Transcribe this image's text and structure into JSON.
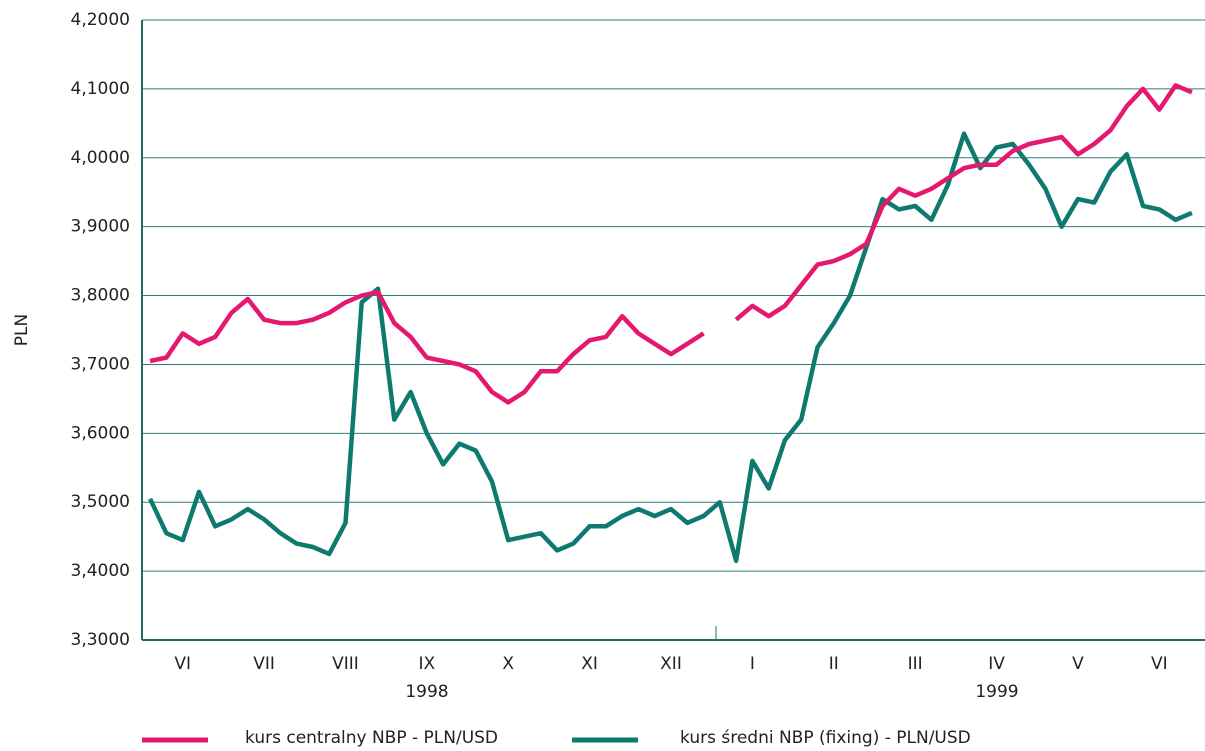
{
  "chart_data": {
    "type": "line",
    "y_label": "PLN",
    "categories": [
      null,
      null,
      "VI",
      null,
      null,
      null,
      null,
      "VII",
      null,
      null,
      null,
      null,
      "VIII",
      null,
      null,
      null,
      null,
      "IX",
      null,
      null,
      null,
      null,
      "X",
      null,
      null,
      null,
      null,
      "XI",
      null,
      null,
      null,
      null,
      "XII",
      null,
      null,
      null,
      null,
      "I",
      null,
      null,
      null,
      null,
      "II",
      null,
      null,
      null,
      null,
      "III",
      null,
      null,
      null,
      null,
      "IV",
      null,
      null,
      null,
      null,
      "V",
      null,
      null,
      null,
      null,
      "VI",
      null,
      null
    ],
    "year_labels": [
      "1998",
      "1999"
    ],
    "series": [
      {
        "name": "kurs centralny NBP - PLN/USD",
        "color": "#e5176f",
        "values": [
          3.705,
          3.71,
          3.745,
          3.73,
          3.74,
          3.775,
          3.795,
          3.765,
          3.76,
          3.76,
          3.765,
          3.775,
          3.79,
          3.8,
          3.805,
          3.76,
          3.74,
          3.71,
          3.705,
          3.7,
          3.69,
          3.66,
          3.645,
          3.66,
          3.69,
          3.69,
          3.715,
          3.735,
          3.74,
          3.77,
          3.745,
          3.73,
          3.715,
          3.73,
          3.745,
          null,
          3.765,
          3.785,
          3.77,
          3.785,
          3.815,
          3.845,
          3.85,
          3.86,
          3.875,
          3.93,
          3.955,
          3.945,
          3.955,
          3.97,
          3.985,
          3.99,
          3.99,
          4.01,
          4.02,
          4.025,
          4.03,
          4.005,
          4.02,
          4.04,
          4.075,
          4.1,
          4.07,
          4.105,
          4.095
        ]
      },
      {
        "name": "kurs średni NBP (fixing) - PLN/USD",
        "color": "#0e7a6f",
        "values": [
          3.505,
          3.455,
          3.445,
          3.515,
          3.465,
          3.475,
          3.49,
          3.475,
          3.455,
          3.44,
          3.435,
          3.425,
          3.47,
          3.79,
          3.81,
          3.62,
          3.66,
          3.6,
          3.555,
          3.585,
          3.575,
          3.53,
          3.445,
          3.45,
          3.455,
          3.43,
          3.44,
          3.465,
          3.465,
          3.48,
          3.49,
          3.48,
          3.49,
          3.47,
          3.48,
          3.5,
          3.415,
          3.56,
          3.52,
          3.59,
          3.62,
          3.725,
          3.76,
          3.8,
          3.87,
          3.94,
          3.925,
          3.93,
          3.91,
          3.96,
          4.035,
          3.985,
          4.015,
          4.02,
          3.99,
          3.955,
          3.9,
          3.94,
          3.935,
          3.98,
          4.005,
          3.93,
          3.925,
          3.91,
          3.92
        ]
      }
    ],
    "ylim": [
      3.3,
      4.2
    ],
    "yticks": [
      {
        "value": 3.3,
        "label": "3,3000"
      },
      {
        "value": 3.4,
        "label": "3,4000"
      },
      {
        "value": 3.5,
        "label": "3,5000"
      },
      {
        "value": 3.6,
        "label": "3,6000"
      },
      {
        "value": 3.7,
        "label": "3,7000"
      },
      {
        "value": 3.8,
        "label": "3,8000"
      },
      {
        "value": 3.9,
        "label": "3,9000"
      },
      {
        "value": 4.0,
        "label": "4,0000"
      },
      {
        "value": 4.1,
        "label": "4,1000"
      },
      {
        "value": 4.2,
        "label": "4,2000"
      }
    ],
    "grid": true
  }
}
